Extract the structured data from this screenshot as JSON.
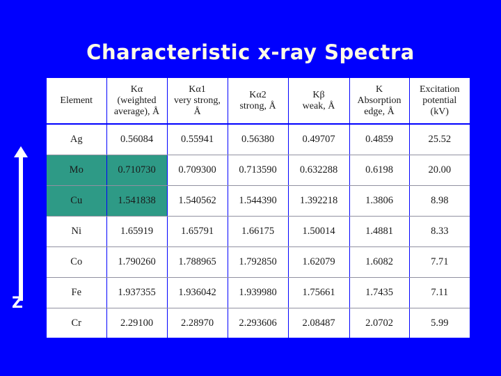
{
  "title": "Characteristic x-ray Spectra",
  "axis_label": "Z",
  "table": {
    "headers": [
      [
        "Element"
      ],
      [
        "Kα",
        "(weighted",
        "average), Å"
      ],
      [
        "Kα1",
        "very strong,",
        "Å"
      ],
      [
        "Kα2",
        "strong, Å"
      ],
      [
        "Kβ",
        "weak, Å"
      ],
      [
        "K",
        "Absorption",
        "edge, Å"
      ],
      [
        "Excitation",
        "potential",
        "(kV)"
      ]
    ],
    "rows": [
      [
        "Ag",
        "0.56084",
        "0.55941",
        "0.56380",
        "0.49707",
        "0.4859",
        "25.52"
      ],
      [
        "Mo",
        "0.710730",
        "0.709300",
        "0.713590",
        "0.632288",
        "0.6198",
        "20.00"
      ],
      [
        "Cu",
        "1.541838",
        "1.540562",
        "1.544390",
        "1.392218",
        "1.3806",
        "8.98"
      ],
      [
        "Ni",
        "1.65919",
        "1.65791",
        "1.66175",
        "1.50014",
        "1.4881",
        "8.33"
      ],
      [
        "Co",
        "1.790260",
        "1.788965",
        "1.792850",
        "1.62079",
        "1.6082",
        "7.71"
      ],
      [
        "Fe",
        "1.937355",
        "1.936042",
        "1.939980",
        "1.75661",
        "1.7435",
        "7.11"
      ],
      [
        "Cr",
        "2.29100",
        "2.28970",
        "2.293606",
        "2.08487",
        "2.0702",
        "5.99"
      ]
    ],
    "highlight_color": "#2e9a86"
  },
  "colors": {
    "background": "#0000fe",
    "title": "#fffbe6"
  }
}
